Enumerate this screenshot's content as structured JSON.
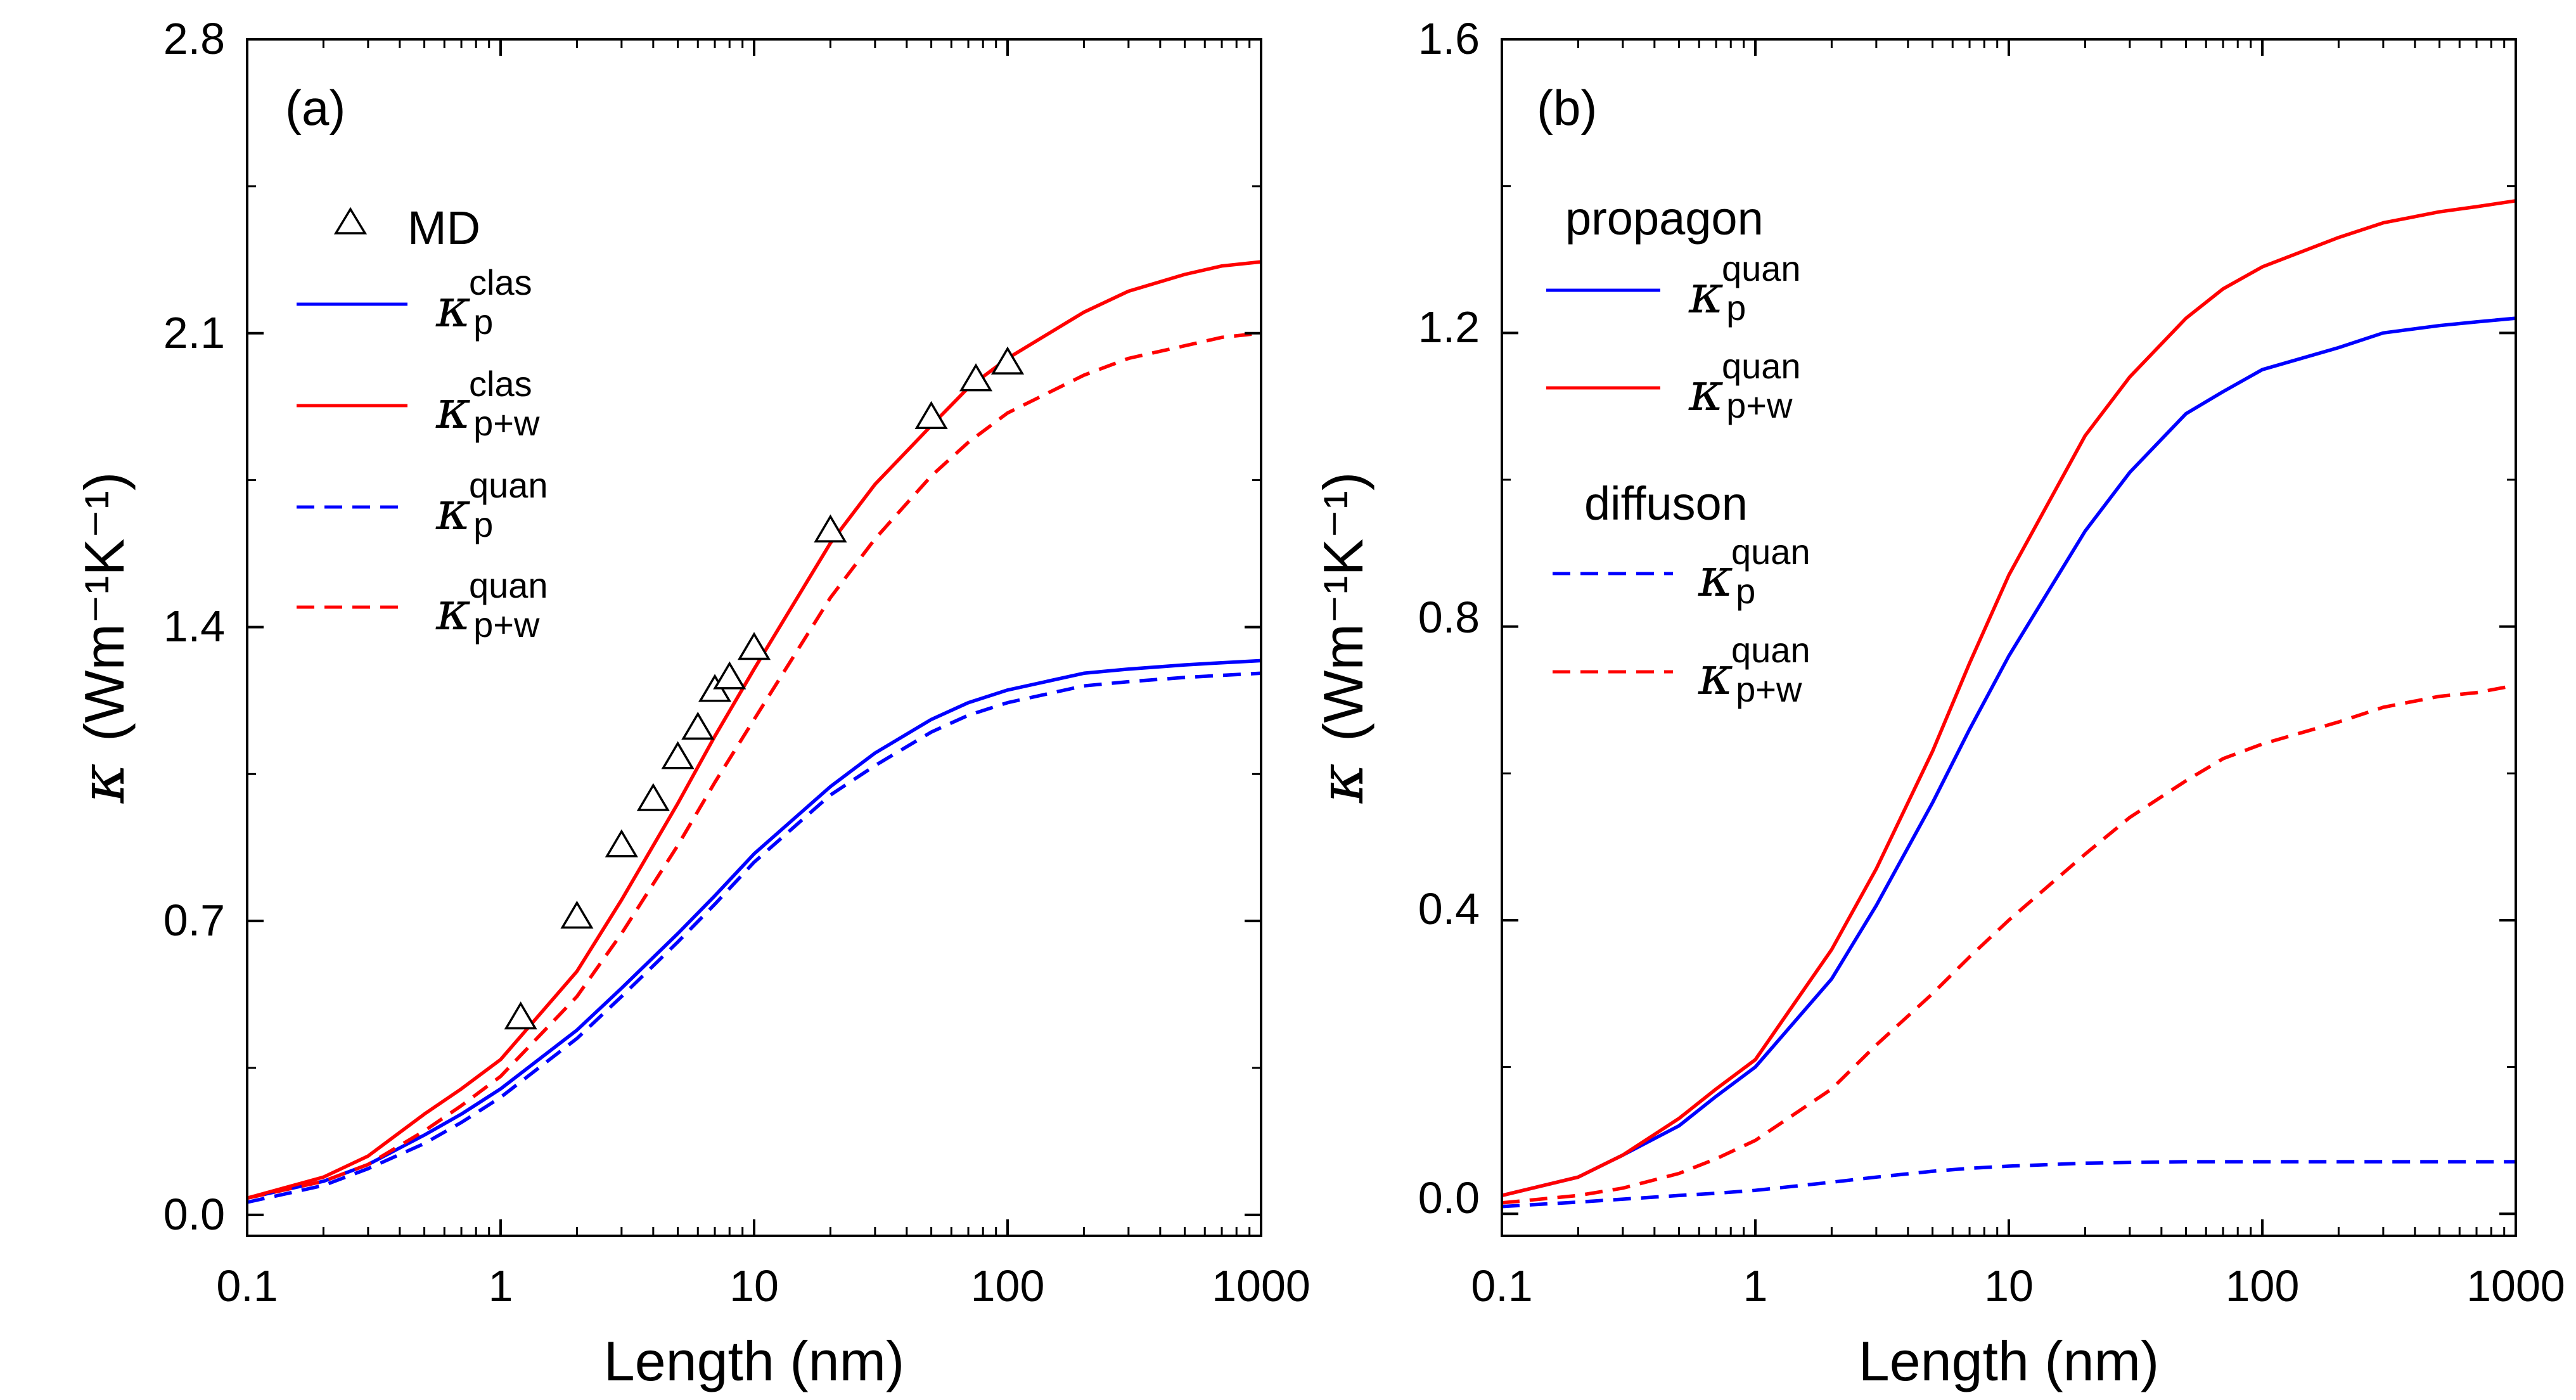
{
  "chart_data": [
    {
      "type": "line",
      "panel_label": "(a)",
      "xlabel": "Length (nm)",
      "ylabel_symbol": "κ",
      "ylabel_units": "(Wm⁻¹K⁻¹)",
      "xscale": "log",
      "xlim": [
        0.1,
        1000
      ],
      "ylim": [
        -0.05,
        2.8
      ],
      "xticks": [
        0.1,
        1,
        10,
        100,
        1000
      ],
      "xtick_labels": [
        "0.1",
        "1",
        "10",
        "100",
        "1000"
      ],
      "yticks": [
        0.0,
        0.7,
        1.4,
        2.1,
        2.8
      ],
      "ytick_labels": [
        "0.0",
        "0.7",
        "1.4",
        "2.1",
        "2.8"
      ],
      "legend_position": "upper-left",
      "series": [
        {
          "name": "κ_p^clas",
          "symbol": "κ",
          "sub": "p",
          "sup": "clas",
          "color": "#0000ff",
          "dash": "solid",
          "x": [
            0.1,
            0.2,
            0.3,
            0.5,
            0.7,
            1,
            2,
            3,
            5,
            7,
            10,
            20,
            30,
            50,
            70,
            100,
            200,
            300,
            500,
            700,
            1000
          ],
          "values": [
            0.04,
            0.08,
            0.12,
            0.19,
            0.24,
            0.3,
            0.44,
            0.54,
            0.67,
            0.76,
            0.86,
            1.02,
            1.1,
            1.18,
            1.22,
            1.25,
            1.29,
            1.3,
            1.31,
            1.315,
            1.32
          ]
        },
        {
          "name": "κ_p+w^clas",
          "symbol": "κ",
          "sub": "p+w",
          "sup": "clas",
          "color": "#ff0000",
          "dash": "solid",
          "x": [
            0.1,
            0.2,
            0.3,
            0.5,
            0.7,
            1,
            2,
            3,
            5,
            7,
            10,
            20,
            30,
            50,
            70,
            100,
            200,
            300,
            500,
            700,
            1000
          ],
          "values": [
            0.04,
            0.09,
            0.14,
            0.24,
            0.3,
            0.37,
            0.58,
            0.75,
            0.98,
            1.14,
            1.3,
            1.6,
            1.74,
            1.88,
            1.97,
            2.04,
            2.15,
            2.2,
            2.24,
            2.26,
            2.27
          ]
        },
        {
          "name": "κ_p^quan",
          "symbol": "κ",
          "sub": "p",
          "sup": "quan",
          "color": "#0000ff",
          "dash": "dashed",
          "x": [
            0.1,
            0.2,
            0.3,
            0.5,
            0.7,
            1,
            2,
            3,
            5,
            7,
            10,
            20,
            30,
            50,
            70,
            100,
            200,
            300,
            500,
            700,
            1000
          ],
          "values": [
            0.03,
            0.07,
            0.11,
            0.17,
            0.22,
            0.28,
            0.42,
            0.52,
            0.65,
            0.74,
            0.84,
            1.0,
            1.07,
            1.15,
            1.19,
            1.22,
            1.26,
            1.27,
            1.28,
            1.285,
            1.29
          ]
        },
        {
          "name": "κ_p+w^quan",
          "symbol": "κ",
          "sub": "p+w",
          "sup": "quan",
          "color": "#ff0000",
          "dash": "dashed",
          "x": [
            0.1,
            0.2,
            0.3,
            0.5,
            0.7,
            1,
            2,
            3,
            5,
            7,
            10,
            20,
            30,
            50,
            70,
            100,
            200,
            300,
            500,
            700,
            1000
          ],
          "values": [
            0.04,
            0.08,
            0.12,
            0.2,
            0.26,
            0.33,
            0.52,
            0.67,
            0.88,
            1.03,
            1.18,
            1.47,
            1.61,
            1.76,
            1.84,
            1.91,
            2.0,
            2.04,
            2.07,
            2.09,
            2.1
          ]
        }
      ],
      "markers": {
        "name": "MD",
        "shape": "triangle",
        "x": [
          1.2,
          2,
          3,
          4,
          5,
          6,
          7,
          8,
          10,
          20,
          50,
          75,
          100
        ],
        "values": [
          0.47,
          0.71,
          0.88,
          0.99,
          1.09,
          1.16,
          1.25,
          1.28,
          1.35,
          1.63,
          1.9,
          1.99,
          2.03
        ]
      }
    },
    {
      "type": "line",
      "panel_label": "(b)",
      "xlabel": "Length (nm)",
      "ylabel_symbol": "κ",
      "ylabel_units": "(Wm⁻¹K⁻¹)",
      "xscale": "log",
      "xlim": [
        0.1,
        1000
      ],
      "ylim": [
        -0.03,
        1.6
      ],
      "xticks": [
        0.1,
        1,
        10,
        100,
        1000
      ],
      "xtick_labels": [
        "0.1",
        "1",
        "10",
        "100",
        "1000"
      ],
      "yticks": [
        0.0,
        0.4,
        0.8,
        1.2,
        1.6
      ],
      "ytick_labels": [
        "0.0",
        "0.4",
        "0.8",
        "1.2",
        "1.6"
      ],
      "legend_position": "upper-left",
      "legend_groups": [
        "propagon",
        "diffuson"
      ],
      "series": [
        {
          "name": "propagon κ_p^quan",
          "group": "propagon",
          "symbol": "κ",
          "sub": "p",
          "sup": "quan",
          "color": "#0000ff",
          "dash": "solid",
          "x": [
            0.1,
            0.2,
            0.3,
            0.5,
            0.7,
            1,
            2,
            3,
            5,
            7,
            10,
            20,
            30,
            50,
            70,
            100,
            200,
            300,
            500,
            700,
            1000
          ],
          "values": [
            0.025,
            0.05,
            0.08,
            0.12,
            0.16,
            0.2,
            0.32,
            0.42,
            0.56,
            0.66,
            0.76,
            0.93,
            1.01,
            1.09,
            1.12,
            1.15,
            1.18,
            1.2,
            1.21,
            1.215,
            1.22
          ]
        },
        {
          "name": "propagon κ_p+w^quan",
          "group": "propagon",
          "symbol": "κ",
          "sub": "p+w",
          "sup": "quan",
          "color": "#ff0000",
          "dash": "solid",
          "x": [
            0.1,
            0.2,
            0.3,
            0.5,
            0.7,
            1,
            2,
            3,
            5,
            7,
            10,
            20,
            30,
            50,
            70,
            100,
            200,
            300,
            500,
            700,
            1000
          ],
          "values": [
            0.025,
            0.05,
            0.08,
            0.13,
            0.17,
            0.21,
            0.36,
            0.47,
            0.63,
            0.75,
            0.87,
            1.06,
            1.14,
            1.22,
            1.26,
            1.29,
            1.33,
            1.35,
            1.365,
            1.372,
            1.38
          ]
        },
        {
          "name": "diffuson κ_p^quan",
          "group": "diffuson",
          "symbol": "κ",
          "sub": "p",
          "sup": "quan",
          "color": "#0000ff",
          "dash": "dashed",
          "x": [
            0.1,
            0.2,
            0.3,
            0.5,
            0.7,
            1,
            2,
            3,
            5,
            7,
            10,
            20,
            30,
            50,
            70,
            100,
            200,
            300,
            500,
            700,
            1000
          ],
          "values": [
            0.01,
            0.016,
            0.02,
            0.025,
            0.028,
            0.032,
            0.043,
            0.05,
            0.058,
            0.062,
            0.065,
            0.069,
            0.07,
            0.071,
            0.071,
            0.071,
            0.071,
            0.071,
            0.071,
            0.071,
            0.071
          ]
        },
        {
          "name": "diffuson κ_p+w^quan",
          "group": "diffuson",
          "symbol": "κ",
          "sub": "p+w",
          "sup": "quan",
          "color": "#ff0000",
          "dash": "dashed",
          "x": [
            0.1,
            0.2,
            0.3,
            0.5,
            0.7,
            1,
            2,
            3,
            5,
            7,
            10,
            20,
            30,
            50,
            70,
            100,
            200,
            300,
            500,
            700,
            1000
          ],
          "values": [
            0.015,
            0.025,
            0.035,
            0.055,
            0.075,
            0.1,
            0.17,
            0.23,
            0.3,
            0.35,
            0.4,
            0.49,
            0.54,
            0.59,
            0.62,
            0.64,
            0.67,
            0.69,
            0.705,
            0.71,
            0.72
          ]
        }
      ]
    }
  ]
}
